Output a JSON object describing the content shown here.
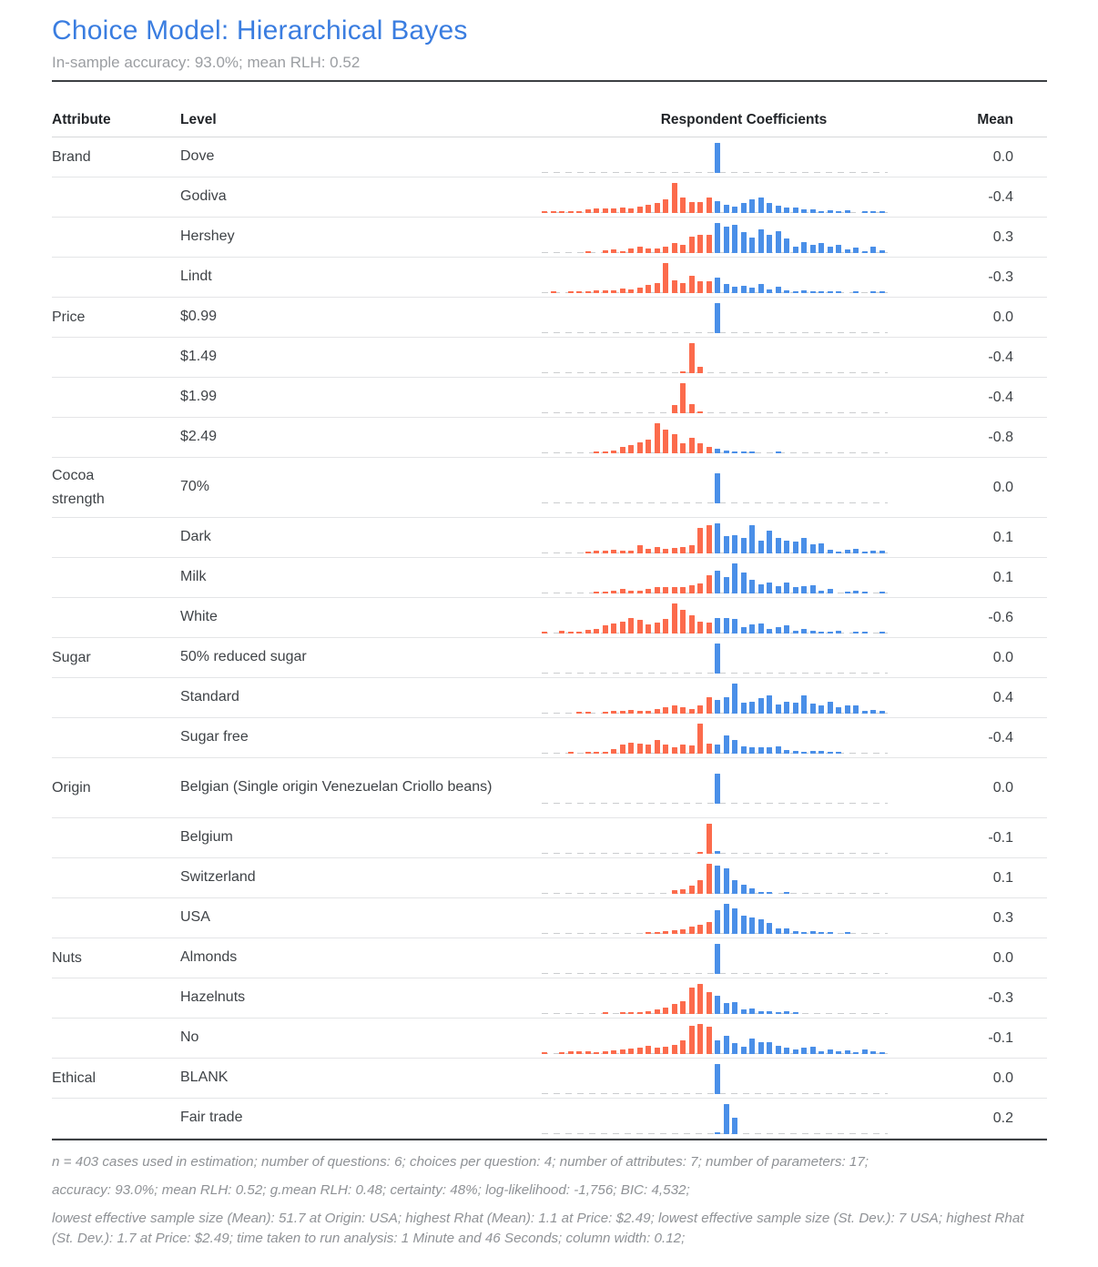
{
  "title": "Choice Model: Hierarchical Bayes",
  "subtitle": "In-sample accuracy: 93.0%; mean RLH: 0.52",
  "colors": {
    "title_blue": "#3a7de0",
    "bar_negative_orange": "#fc6b4c",
    "bar_positive_blue": "#4a8fe8",
    "baseline_dash_gray": "#cbcdcf",
    "rule_dark": "#3d4043"
  },
  "chart_data": {
    "type": "table",
    "columns": [
      "Attribute",
      "Level",
      "Respondent Coefficients",
      "Mean"
    ],
    "histogram_note": "each row shows distribution of respondent coefficients; bars left of zero are orange (negative), right of zero blue (positive); zero_index marks the color split; heights are relative 0-100",
    "zero_index": 20,
    "rows": [
      {
        "attribute": "Brand",
        "level": "Dove",
        "mean": "0.0",
        "tall": false,
        "bars": [
          0,
          0,
          0,
          0,
          0,
          0,
          0,
          0,
          0,
          0,
          0,
          0,
          0,
          0,
          0,
          0,
          0,
          0,
          0,
          0,
          100,
          0,
          0,
          0,
          0,
          0,
          0,
          0,
          0,
          0,
          0,
          0,
          0,
          0,
          0,
          0,
          0,
          0,
          0,
          0
        ]
      },
      {
        "attribute": "",
        "level": "Godiva",
        "mean": "-0.4",
        "tall": false,
        "bars": [
          2,
          2,
          2,
          3,
          3,
          12,
          14,
          16,
          14,
          18,
          16,
          22,
          26,
          34,
          46,
          100,
          50,
          36,
          36,
          52,
          40,
          28,
          22,
          32,
          46,
          50,
          34,
          24,
          18,
          18,
          12,
          12,
          6,
          8,
          4,
          8,
          0,
          3,
          5,
          3
        ]
      },
      {
        "attribute": "",
        "level": "Hershey",
        "mean": "0.3",
        "tall": false,
        "bars": [
          0,
          0,
          0,
          0,
          0,
          6,
          0,
          10,
          12,
          5,
          16,
          22,
          16,
          14,
          22,
          34,
          28,
          56,
          62,
          62,
          100,
          88,
          95,
          70,
          52,
          78,
          62,
          74,
          48,
          20,
          36,
          28,
          34,
          22,
          26,
          12,
          18,
          6,
          22,
          10
        ]
      },
      {
        "attribute": "",
        "level": "Lindt",
        "mean": "-0.3",
        "tall": false,
        "bars": [
          0,
          2,
          0,
          2,
          3,
          3,
          8,
          10,
          10,
          14,
          12,
          18,
          26,
          34,
          100,
          42,
          34,
          58,
          40,
          40,
          52,
          30,
          22,
          24,
          18,
          30,
          12,
          20,
          8,
          6,
          10,
          6,
          3,
          3,
          3,
          0,
          3,
          0,
          3,
          2
        ]
      },
      {
        "attribute": "Price",
        "level": "$0.99",
        "mean": "0.0",
        "tall": false,
        "bars": [
          0,
          0,
          0,
          0,
          0,
          0,
          0,
          0,
          0,
          0,
          0,
          0,
          0,
          0,
          0,
          0,
          0,
          0,
          0,
          0,
          100,
          0,
          0,
          0,
          0,
          0,
          0,
          0,
          0,
          0,
          0,
          0,
          0,
          0,
          0,
          0,
          0,
          0,
          0,
          0
        ]
      },
      {
        "attribute": "",
        "level": "$1.49",
        "mean": "-0.4",
        "tall": false,
        "bars": [
          0,
          0,
          0,
          0,
          0,
          0,
          0,
          0,
          0,
          0,
          0,
          0,
          0,
          0,
          0,
          0,
          3,
          100,
          22,
          0,
          0,
          0,
          0,
          0,
          0,
          0,
          0,
          0,
          0,
          0,
          0,
          0,
          0,
          0,
          0,
          0,
          0,
          0,
          0,
          0
        ]
      },
      {
        "attribute": "",
        "level": "$1.99",
        "mean": "-0.4",
        "tall": false,
        "bars": [
          0,
          0,
          0,
          0,
          0,
          0,
          0,
          0,
          0,
          0,
          0,
          0,
          0,
          0,
          0,
          28,
          100,
          30,
          5,
          0,
          0,
          0,
          0,
          0,
          0,
          0,
          0,
          0,
          0,
          0,
          0,
          0,
          0,
          0,
          0,
          0,
          0,
          0,
          0,
          0
        ]
      },
      {
        "attribute": "",
        "level": "$2.49",
        "mean": "-0.8",
        "tall": false,
        "bars": [
          0,
          0,
          0,
          0,
          0,
          0,
          2,
          5,
          10,
          20,
          28,
          36,
          46,
          100,
          78,
          64,
          34,
          50,
          34,
          22,
          14,
          8,
          6,
          6,
          6,
          0,
          0,
          6,
          0,
          0,
          0,
          0,
          0,
          0,
          0,
          0,
          0,
          0,
          0,
          0
        ]
      },
      {
        "attribute": "Cocoa strength",
        "level": "70%",
        "mean": "0.0",
        "tall": true,
        "bars": [
          0,
          0,
          0,
          0,
          0,
          0,
          0,
          0,
          0,
          0,
          0,
          0,
          0,
          0,
          0,
          0,
          0,
          0,
          0,
          0,
          100,
          0,
          0,
          0,
          0,
          0,
          0,
          0,
          0,
          0,
          0,
          0,
          0,
          0,
          0,
          0,
          0,
          0,
          0,
          0
        ]
      },
      {
        "attribute": "",
        "level": "Dark",
        "mean": "0.1",
        "tall": false,
        "bars": [
          0,
          0,
          0,
          0,
          0,
          2,
          8,
          10,
          12,
          8,
          10,
          26,
          16,
          20,
          14,
          18,
          22,
          28,
          85,
          95,
          100,
          58,
          62,
          52,
          95,
          42,
          75,
          52,
          42,
          38,
          52,
          30,
          32,
          12,
          6,
          12,
          14,
          6,
          8,
          8
        ]
      },
      {
        "attribute": "",
        "level": "Milk",
        "mean": "0.1",
        "tall": false,
        "bars": [
          0,
          0,
          0,
          0,
          0,
          0,
          2,
          6,
          10,
          14,
          10,
          8,
          14,
          20,
          22,
          22,
          20,
          28,
          32,
          60,
          75,
          55,
          100,
          70,
          45,
          30,
          35,
          25,
          35,
          22,
          25,
          28,
          10,
          15,
          0,
          5,
          10,
          5,
          0,
          5
        ]
      },
      {
        "attribute": "",
        "level": "White",
        "mean": "-0.6",
        "tall": false,
        "bars": [
          2,
          0,
          8,
          6,
          6,
          12,
          16,
          28,
          34,
          40,
          52,
          46,
          30,
          36,
          48,
          100,
          78,
          62,
          40,
          36,
          50,
          52,
          48,
          22,
          30,
          32,
          14,
          22,
          26,
          10,
          16,
          8,
          6,
          4,
          10,
          0,
          4,
          4,
          0,
          6
        ]
      },
      {
        "attribute": "Sugar",
        "level": "50% reduced sugar",
        "mean": "0.0",
        "tall": false,
        "bars": [
          0,
          0,
          0,
          0,
          0,
          0,
          0,
          0,
          0,
          0,
          0,
          0,
          0,
          0,
          0,
          0,
          0,
          0,
          0,
          0,
          100,
          0,
          0,
          0,
          0,
          0,
          0,
          0,
          0,
          0,
          0,
          0,
          0,
          0,
          0,
          0,
          0,
          0,
          0,
          0
        ]
      },
      {
        "attribute": "",
        "level": "Standard",
        "mean": "0.4",
        "tall": false,
        "bars": [
          0,
          0,
          0,
          0,
          2,
          3,
          0,
          3,
          8,
          10,
          12,
          10,
          8,
          14,
          20,
          26,
          22,
          14,
          26,
          55,
          45,
          55,
          100,
          35,
          40,
          50,
          62,
          30,
          38,
          35,
          60,
          32,
          28,
          40,
          22,
          28,
          26,
          10,
          12,
          10
        ]
      },
      {
        "attribute": "",
        "level": "Sugar free",
        "mean": "-0.4",
        "tall": false,
        "bars": [
          0,
          0,
          0,
          2,
          0,
          4,
          6,
          6,
          14,
          30,
          36,
          34,
          30,
          45,
          30,
          22,
          30,
          28,
          100,
          32,
          30,
          62,
          45,
          25,
          20,
          22,
          22,
          25,
          12,
          8,
          2,
          8,
          8,
          2,
          6,
          0,
          0,
          0,
          0,
          0
        ]
      },
      {
        "attribute": "Origin",
        "level": "Belgian (Single origin Venezuelan Criollo beans)",
        "mean": "0.0",
        "tall": true,
        "bars": [
          0,
          0,
          0,
          0,
          0,
          0,
          0,
          0,
          0,
          0,
          0,
          0,
          0,
          0,
          0,
          0,
          0,
          0,
          0,
          0,
          100,
          0,
          0,
          0,
          0,
          0,
          0,
          0,
          0,
          0,
          0,
          0,
          0,
          0,
          0,
          0,
          0,
          0,
          0,
          0
        ]
      },
      {
        "attribute": "",
        "level": "Belgium",
        "mean": "-0.1",
        "tall": false,
        "bars": [
          0,
          0,
          0,
          0,
          0,
          0,
          0,
          0,
          0,
          0,
          0,
          0,
          0,
          0,
          0,
          0,
          0,
          0,
          4,
          100,
          10,
          0,
          0,
          0,
          0,
          0,
          0,
          0,
          0,
          0,
          0,
          0,
          0,
          0,
          0,
          0,
          0,
          0,
          0,
          0
        ]
      },
      {
        "attribute": "",
        "level": "Switzerland",
        "mean": "0.1",
        "tall": false,
        "bars": [
          0,
          0,
          0,
          0,
          0,
          0,
          0,
          0,
          0,
          0,
          0,
          0,
          0,
          0,
          0,
          12,
          15,
          28,
          45,
          100,
          95,
          85,
          45,
          30,
          18,
          4,
          4,
          0,
          4,
          0,
          0,
          0,
          0,
          0,
          0,
          0,
          0,
          0,
          0,
          0
        ]
      },
      {
        "attribute": "",
        "level": "USA",
        "mean": "0.3",
        "tall": false,
        "bars": [
          0,
          0,
          0,
          0,
          0,
          0,
          0,
          0,
          0,
          0,
          0,
          0,
          2,
          5,
          10,
          12,
          16,
          24,
          30,
          40,
          80,
          100,
          85,
          62,
          55,
          48,
          35,
          18,
          18,
          10,
          6,
          8,
          4,
          6,
          0,
          4,
          0,
          0,
          0,
          0
        ]
      },
      {
        "attribute": "Nuts",
        "level": "Almonds",
        "mean": "0.0",
        "tall": false,
        "bars": [
          0,
          0,
          0,
          0,
          0,
          0,
          0,
          0,
          0,
          0,
          0,
          0,
          0,
          0,
          0,
          0,
          0,
          0,
          0,
          0,
          100,
          0,
          0,
          0,
          0,
          0,
          0,
          0,
          0,
          0,
          0,
          0,
          0,
          0,
          0,
          0,
          0,
          0,
          0,
          0
        ]
      },
      {
        "attribute": "",
        "level": "Hazelnuts",
        "mean": "-0.3",
        "tall": false,
        "bars": [
          0,
          0,
          0,
          0,
          0,
          0,
          0,
          3,
          0,
          4,
          2,
          6,
          10,
          14,
          22,
          34,
          42,
          88,
          100,
          72,
          60,
          35,
          38,
          15,
          18,
          8,
          10,
          4,
          8,
          4,
          0,
          0,
          0,
          0,
          0,
          0,
          0,
          0,
          0,
          0
        ]
      },
      {
        "attribute": "",
        "level": "No",
        "mean": "-0.1",
        "tall": false,
        "bars": [
          4,
          0,
          6,
          8,
          8,
          8,
          6,
          10,
          12,
          14,
          18,
          22,
          26,
          20,
          24,
          30,
          44,
          95,
          100,
          90,
          45,
          60,
          35,
          25,
          50,
          38,
          40,
          28,
          22,
          15,
          22,
          25,
          10,
          15,
          8,
          12,
          5,
          15,
          10,
          5
        ]
      },
      {
        "attribute": "Ethical",
        "level": "BLANK",
        "mean": "0.0",
        "tall": false,
        "bars": [
          0,
          0,
          0,
          0,
          0,
          0,
          0,
          0,
          0,
          0,
          0,
          0,
          0,
          0,
          0,
          0,
          0,
          0,
          0,
          0,
          100,
          0,
          0,
          0,
          0,
          0,
          0,
          0,
          0,
          0,
          0,
          0,
          0,
          0,
          0,
          0,
          0,
          0,
          0,
          0
        ]
      },
      {
        "attribute": "",
        "level": "Fair trade",
        "mean": "0.2",
        "tall": false,
        "bars": [
          0,
          0,
          0,
          0,
          0,
          0,
          0,
          0,
          0,
          0,
          0,
          0,
          0,
          0,
          0,
          0,
          0,
          0,
          0,
          0,
          6,
          100,
          55,
          0,
          0,
          0,
          0,
          0,
          0,
          0,
          0,
          0,
          0,
          0,
          0,
          0,
          0,
          0,
          0,
          0
        ]
      }
    ]
  },
  "footnotes": [
    "n = 403 cases used in estimation; number of questions: 6; choices per question: 4; number of attributes: 7; number of parameters: 17;",
    "accuracy: 93.0%; mean RLH: 0.52; g.mean RLH: 0.48; certainty: 48%; log-likelihood: -1,756; BIC: 4,532;",
    "lowest effective sample size (Mean): 51.7 at Origin: USA; highest Rhat (Mean): 1.1 at Price: $2.49; lowest effective sample size (St. Dev.): 7 USA; highest Rhat (St. Dev.): 1.7 at Price: $2.49; time taken to run analysis: 1 Minute and 46 Seconds; column width: 0.12;"
  ]
}
